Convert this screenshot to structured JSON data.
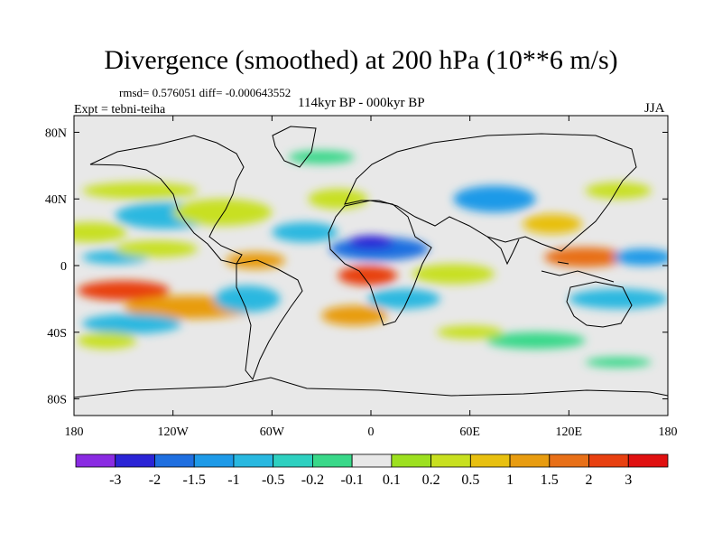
{
  "header": {
    "title": "Divergence (smoothed) at 200 hPa (10**6 m/s)",
    "stats": "rmsd= 0.576051 diff= -0.000643552",
    "experiment": "Expt = tebni-teiha",
    "period": "114kyr BP - 000kyr BP",
    "season": "JJA"
  },
  "map": {
    "type": "heatmap",
    "projection": "cylindrical equidistant",
    "xlim": [
      -180,
      180
    ],
    "ylim": [
      -90,
      90
    ],
    "x_ticks": [
      {
        "value": -180,
        "label": "180"
      },
      {
        "value": -120,
        "label": "120W"
      },
      {
        "value": -60,
        "label": "60W"
      },
      {
        "value": 0,
        "label": "0"
      },
      {
        "value": 60,
        "label": "60E"
      },
      {
        "value": 120,
        "label": "120E"
      },
      {
        "value": 180,
        "label": "180"
      }
    ],
    "y_ticks": [
      {
        "value": 80,
        "label": "80N"
      },
      {
        "value": 40,
        "label": "40N"
      },
      {
        "value": 0,
        "label": "0"
      },
      {
        "value": -40,
        "label": "40S"
      },
      {
        "value": -80,
        "label": "80S"
      }
    ],
    "fill_colors": [
      "#8a2be2",
      "#2b24d6",
      "#1f6fe0",
      "#1e9ae8",
      "#29b8e0",
      "#2ed0c0",
      "#39d889",
      "#e8e8e8",
      "#9de020",
      "#c8e020",
      "#e8c010",
      "#e89c10",
      "#e87018",
      "#e84010",
      "#e01010"
    ],
    "regions": [
      {
        "lon": -170,
        "lat": 20,
        "rx": 22,
        "ry": 6,
        "level": 9
      },
      {
        "lon": -155,
        "lat": 5,
        "rx": 20,
        "ry": 4,
        "level": 4
      },
      {
        "lon": -125,
        "lat": 30,
        "rx": 30,
        "ry": 8,
        "level": 4
      },
      {
        "lon": -90,
        "lat": 32,
        "rx": 30,
        "ry": 8,
        "level": 9
      },
      {
        "lon": -140,
        "lat": 45,
        "rx": 35,
        "ry": 5,
        "level": 9
      },
      {
        "lon": -150,
        "lat": -15,
        "rx": 28,
        "ry": 6,
        "level": 13
      },
      {
        "lon": -110,
        "lat": -25,
        "rx": 40,
        "ry": 7,
        "level": 11
      },
      {
        "lon": -145,
        "lat": -35,
        "rx": 30,
        "ry": 6,
        "level": 4
      },
      {
        "lon": -160,
        "lat": -45,
        "rx": 18,
        "ry": 5,
        "level": 9
      },
      {
        "lon": -130,
        "lat": 10,
        "rx": 25,
        "ry": 5,
        "level": 9
      },
      {
        "lon": -70,
        "lat": 3,
        "rx": 18,
        "ry": 5,
        "level": 11
      },
      {
        "lon": -75,
        "lat": -20,
        "rx": 20,
        "ry": 8,
        "level": 4
      },
      {
        "lon": -40,
        "lat": 20,
        "rx": 20,
        "ry": 6,
        "level": 4
      },
      {
        "lon": -20,
        "lat": 40,
        "rx": 18,
        "ry": 6,
        "level": 9
      },
      {
        "lon": 5,
        "lat": 10,
        "rx": 30,
        "ry": 7,
        "level": 2
      },
      {
        "lon": 0,
        "lat": 14,
        "rx": 14,
        "ry": 4,
        "level": 1
      },
      {
        "lon": -2,
        "lat": -6,
        "rx": 18,
        "ry": 6,
        "level": 13
      },
      {
        "lon": -10,
        "lat": -30,
        "rx": 20,
        "ry": 6,
        "level": 11
      },
      {
        "lon": 20,
        "lat": -20,
        "rx": 22,
        "ry": 6,
        "level": 4
      },
      {
        "lon": 50,
        "lat": -5,
        "rx": 25,
        "ry": 6,
        "level": 9
      },
      {
        "lon": 75,
        "lat": 40,
        "rx": 25,
        "ry": 8,
        "level": 3
      },
      {
        "lon": 110,
        "lat": 25,
        "rx": 18,
        "ry": 6,
        "level": 10
      },
      {
        "lon": 150,
        "lat": 45,
        "rx": 20,
        "ry": 5,
        "level": 9
      },
      {
        "lon": 130,
        "lat": 5,
        "rx": 25,
        "ry": 6,
        "level": 12
      },
      {
        "lon": 150,
        "lat": -20,
        "rx": 30,
        "ry": 6,
        "level": 4
      },
      {
        "lon": 165,
        "lat": 5,
        "rx": 18,
        "ry": 5,
        "level": 3
      },
      {
        "lon": 100,
        "lat": -45,
        "rx": 30,
        "ry": 5,
        "level": 6
      },
      {
        "lon": 60,
        "lat": -40,
        "rx": 20,
        "ry": 4,
        "level": 9
      },
      {
        "lon": -30,
        "lat": 65,
        "rx": 20,
        "ry": 4,
        "level": 6
      },
      {
        "lon": 150,
        "lat": -58,
        "rx": 20,
        "ry": 3,
        "level": 6
      }
    ]
  },
  "colorbar": {
    "colors": [
      "#8a2be2",
      "#2b24d6",
      "#1f6fe0",
      "#1e9ae8",
      "#29b8e0",
      "#2ed0c0",
      "#39d889",
      "#e8e8e8",
      "#9de020",
      "#c8e020",
      "#e8c010",
      "#e89c10",
      "#e87018",
      "#e84010",
      "#e01010"
    ],
    "labels": [
      "-3",
      "-2",
      "-1.5",
      "-1",
      "-0.5",
      "-0.2",
      "-0.1",
      "0.1",
      "0.2",
      "0.5",
      "1",
      "1.5",
      "2",
      "3"
    ]
  }
}
